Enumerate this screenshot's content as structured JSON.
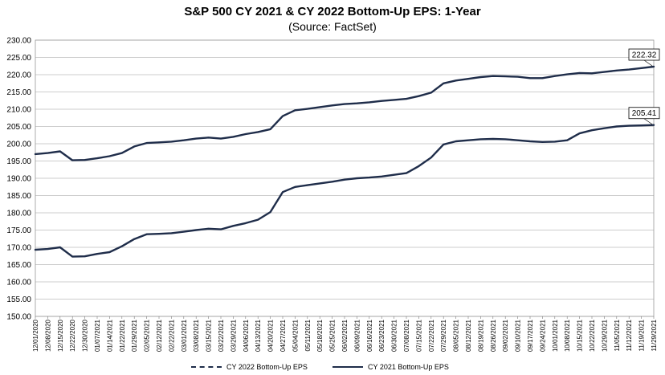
{
  "chart_data": {
    "type": "line",
    "title": "S&P 500 CY 2021 & CY 2022 Bottom-Up  EPS: 1-Year",
    "subtitle": "(Source: FactSet)",
    "ylim": [
      150,
      230
    ],
    "yticks": [
      "150.00",
      "155.00",
      "160.00",
      "165.00",
      "170.00",
      "175.00",
      "180.00",
      "185.00",
      "190.00",
      "195.00",
      "200.00",
      "205.00",
      "210.00",
      "215.00",
      "220.00",
      "225.00",
      "230.00"
    ],
    "x": [
      "12/01/2020",
      "12/08/2020",
      "12/15/2020",
      "12/22/2020",
      "12/30/2020",
      "01/07/2021",
      "01/14/2021",
      "01/22/2021",
      "01/29/2021",
      "02/05/2021",
      "02/12/2021",
      "02/22/2021",
      "03/01/2021",
      "03/08/2021",
      "03/15/2021",
      "03/22/2021",
      "03/29/2021",
      "04/06/2021",
      "04/13/2021",
      "04/20/2021",
      "04/27/2021",
      "05/04/2021",
      "05/11/2021",
      "05/18/2021",
      "05/25/2021",
      "06/02/2021",
      "06/09/2021",
      "06/16/2021",
      "06/23/2021",
      "06/30/2021",
      "07/08/2021",
      "07/15/2021",
      "07/22/2021",
      "07/29/2021",
      "08/05/2021",
      "08/12/2021",
      "08/19/2021",
      "08/26/2021",
      "09/02/2021",
      "09/10/2021",
      "09/17/2021",
      "09/24/2021",
      "10/01/2021",
      "10/08/2021",
      "10/15/2021",
      "10/22/2021",
      "10/29/2021",
      "11/05/2021",
      "11/12/2021",
      "11/19/2021",
      "11/29/2021"
    ],
    "series": [
      {
        "name": "CY 2022 Bottom-Up EPS",
        "dash": true,
        "values": [
          197.0,
          197.3,
          197.8,
          195.2,
          195.3,
          195.8,
          196.4,
          197.3,
          199.2,
          200.2,
          200.4,
          200.6,
          201.0,
          201.5,
          201.8,
          201.5,
          202.0,
          202.8,
          203.4,
          204.2,
          208.0,
          209.7,
          210.1,
          210.6,
          211.1,
          211.5,
          211.7,
          212.0,
          212.4,
          212.7,
          213.0,
          213.8,
          214.8,
          217.5,
          218.3,
          218.8,
          219.3,
          219.6,
          219.5,
          219.4,
          219.0,
          219.0,
          219.6,
          220.1,
          220.5,
          220.4,
          220.8,
          221.2,
          221.5,
          221.9,
          222.32
        ],
        "end_label": "222.32"
      },
      {
        "name": "CY 2021 Bottom-Up EPS",
        "dash": false,
        "values": [
          169.3,
          169.5,
          170.0,
          167.3,
          167.4,
          168.1,
          168.6,
          170.3,
          172.4,
          173.8,
          173.9,
          174.1,
          174.5,
          175.0,
          175.4,
          175.2,
          176.2,
          177.0,
          178.0,
          180.2,
          186.0,
          187.5,
          188.0,
          188.5,
          189.0,
          189.6,
          190.0,
          190.2,
          190.5,
          191.0,
          191.5,
          193.5,
          196.0,
          199.8,
          200.7,
          201.0,
          201.3,
          201.4,
          201.3,
          201.0,
          200.7,
          200.5,
          200.6,
          201.0,
          203.0,
          203.9,
          204.5,
          205.0,
          205.2,
          205.3,
          205.41
        ],
        "end_label": "205.41"
      }
    ],
    "color": "#1f2d4a",
    "grid": true,
    "legend_position": "bottom"
  }
}
